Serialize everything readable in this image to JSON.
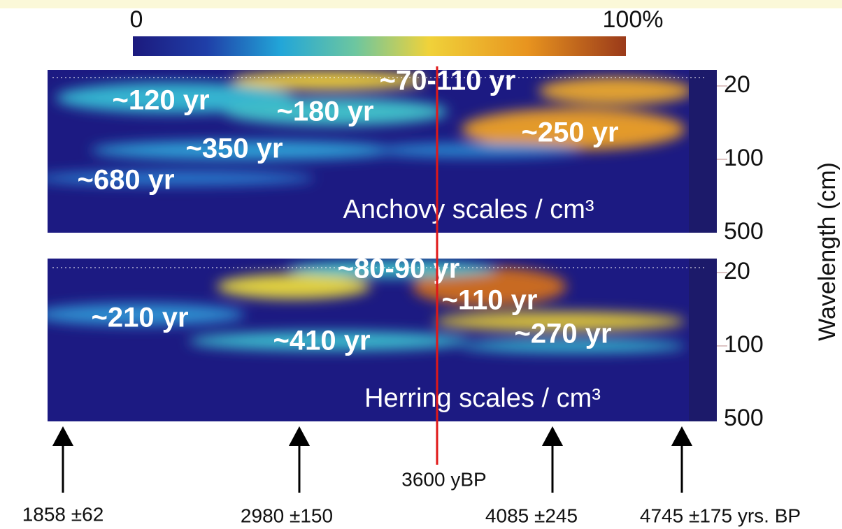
{
  "colorbar": {
    "min_label": "0",
    "max_label": "100%"
  },
  "axis_label": "Wavelength (cm)",
  "panels": [
    {
      "title": "Anchovy scales / cm³",
      "ticks": [
        "20",
        "100",
        "500"
      ],
      "annotations": [
        "~70-110 yr",
        "~120 yr",
        "~180 yr",
        "~250 yr",
        "~350 yr",
        "~680 yr"
      ]
    },
    {
      "title": "Herring scales / cm³",
      "ticks": [
        "20",
        "100",
        "500"
      ],
      "annotations": [
        "~80-90 yr",
        "~110 yr",
        "~210 yr",
        "~410 yr",
        "~270 yr"
      ]
    }
  ],
  "marker": "3600 yBP",
  "dates": [
    "1858 ±62",
    "2980 ±150",
    "4085 ±245",
    "4745 ±175 yrs. BP"
  ]
}
